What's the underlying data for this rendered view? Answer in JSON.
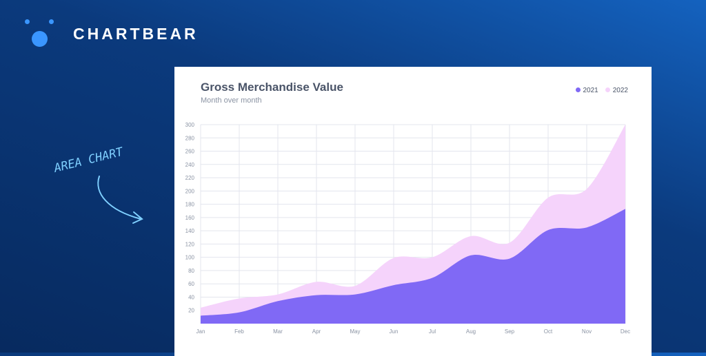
{
  "brand": {
    "name": "CHARTBEAR"
  },
  "annotation": {
    "text": "AREA CHART"
  },
  "colors": {
    "c2021": "#8069f5",
    "c2022": "#f5d3fb",
    "grid": "#e3e5ee",
    "accent": "#3a96ff"
  },
  "chart_data": {
    "type": "area",
    "title": "Gross Merchandise Value",
    "subtitle": "Month over month",
    "categories": [
      "Jan",
      "Feb",
      "Mar",
      "Apr",
      "May",
      "Jun",
      "Jul",
      "Aug",
      "Sep",
      "Oct",
      "Nov",
      "Dec"
    ],
    "series": [
      {
        "name": "2021",
        "values": [
          12,
          17,
          34,
          43,
          44,
          58,
          69,
          103,
          98,
          141,
          145,
          173
        ]
      },
      {
        "name": "2022",
        "values": [
          24,
          38,
          44,
          63,
          57,
          99,
          100,
          132,
          122,
          190,
          203,
          300
        ]
      }
    ],
    "yticks": [
      20,
      40,
      60,
      80,
      100,
      120,
      140,
      160,
      180,
      200,
      220,
      240,
      260,
      280,
      300
    ],
    "ylim": [
      0,
      300
    ],
    "grid": true,
    "legend": "top-right"
  }
}
